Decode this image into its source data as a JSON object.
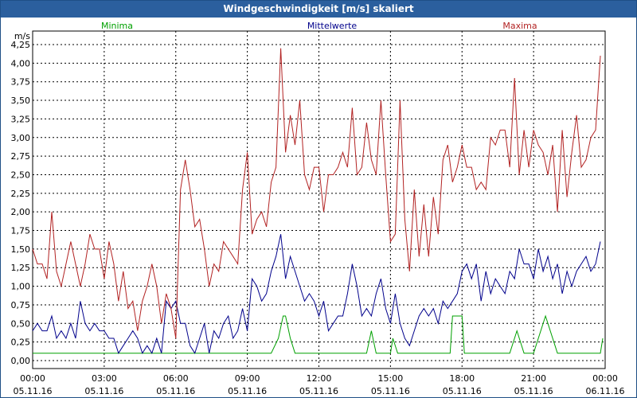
{
  "chart_title": "Windgeschwindigkeit [m/s] skaliert",
  "chart_data": {
    "type": "line",
    "title": "Windgeschwindigkeit [m/s] skaliert",
    "ylabel": "m/s",
    "ylim": [
      0,
      4.25
    ],
    "xlim": [
      0,
      24
    ],
    "grid": true,
    "legend_position": "top",
    "y_ticks": [
      "0,00",
      "0,25",
      "0,50",
      "0,75",
      "1,00",
      "1,25",
      "1,50",
      "1,75",
      "2,00",
      "2,25",
      "2,50",
      "2,75",
      "3,00",
      "3,25",
      "3,50",
      "3,75",
      "4,00",
      "4,25"
    ],
    "x_ticks": [
      {
        "time": "00:00",
        "date": "05.11.16",
        "hour": 0
      },
      {
        "time": "03:00",
        "date": "05.11.16",
        "hour": 3
      },
      {
        "time": "06:00",
        "date": "05.11.16",
        "hour": 6
      },
      {
        "time": "09:00",
        "date": "05.11.16",
        "hour": 9
      },
      {
        "time": "12:00",
        "date": "05.11.16",
        "hour": 12
      },
      {
        "time": "15:00",
        "date": "05.11.16",
        "hour": 15
      },
      {
        "time": "18:00",
        "date": "05.11.16",
        "hour": 18
      },
      {
        "time": "21:00",
        "date": "05.11.16",
        "hour": 21
      },
      {
        "time": "00:00",
        "date": "06.11.16",
        "hour": 24
      }
    ],
    "series": [
      {
        "name": "Minima",
        "color": "#00a000",
        "x": [
          0,
          10.0,
          10.3,
          10.5,
          10.6,
          10.8,
          11.0,
          14.0,
          14.2,
          14.4,
          15.0,
          15.1,
          15.3,
          15.5,
          17.5,
          17.6,
          18.0,
          18.1,
          20.0,
          20.3,
          20.6,
          21.0,
          21.5,
          22.0,
          23.8,
          23.9
        ],
        "values": [
          0.1,
          0.1,
          0.3,
          0.6,
          0.6,
          0.3,
          0.1,
          0.1,
          0.4,
          0.1,
          0.1,
          0.3,
          0.1,
          0.1,
          0.1,
          0.6,
          0.6,
          0.1,
          0.1,
          0.4,
          0.1,
          0.1,
          0.6,
          0.1,
          0.1,
          0.3
        ]
      },
      {
        "name": "Mittelwerte",
        "color": "#00008b",
        "x": [
          0,
          0.2,
          0.4,
          0.6,
          0.8,
          1.0,
          1.2,
          1.4,
          1.6,
          1.8,
          2.0,
          2.2,
          2.4,
          2.6,
          2.8,
          3.0,
          3.2,
          3.4,
          3.6,
          3.8,
          4.0,
          4.2,
          4.4,
          4.6,
          4.8,
          5.0,
          5.2,
          5.4,
          5.6,
          5.8,
          6.0,
          6.2,
          6.4,
          6.6,
          6.8,
          7.0,
          7.2,
          7.4,
          7.6,
          7.8,
          8.0,
          8.2,
          8.4,
          8.6,
          8.8,
          9.0,
          9.2,
          9.4,
          9.6,
          9.8,
          10.0,
          10.2,
          10.4,
          10.6,
          10.8,
          11.0,
          11.2,
          11.4,
          11.6,
          11.8,
          12.0,
          12.2,
          12.4,
          12.6,
          12.8,
          13.0,
          13.2,
          13.4,
          13.6,
          13.8,
          14.0,
          14.2,
          14.4,
          14.6,
          14.8,
          15.0,
          15.2,
          15.4,
          15.6,
          15.8,
          16.0,
          16.2,
          16.4,
          16.6,
          16.8,
          17.0,
          17.2,
          17.4,
          17.6,
          17.8,
          18.0,
          18.2,
          18.4,
          18.6,
          18.8,
          19.0,
          19.2,
          19.4,
          19.6,
          19.8,
          20.0,
          20.2,
          20.4,
          20.6,
          20.8,
          21.0,
          21.2,
          21.4,
          21.6,
          21.8,
          22.0,
          22.2,
          22.4,
          22.6,
          22.8,
          23.0,
          23.2,
          23.4,
          23.6,
          23.8
        ],
        "values": [
          0.4,
          0.5,
          0.4,
          0.4,
          0.6,
          0.3,
          0.4,
          0.3,
          0.5,
          0.3,
          0.8,
          0.5,
          0.4,
          0.5,
          0.4,
          0.4,
          0.3,
          0.3,
          0.1,
          0.2,
          0.3,
          0.4,
          0.3,
          0.1,
          0.2,
          0.1,
          0.3,
          0.1,
          0.8,
          0.7,
          0.8,
          0.5,
          0.5,
          0.2,
          0.1,
          0.3,
          0.5,
          0.1,
          0.4,
          0.3,
          0.5,
          0.6,
          0.3,
          0.4,
          0.7,
          0.4,
          1.1,
          1.0,
          0.8,
          0.9,
          1.2,
          1.4,
          1.7,
          1.1,
          1.4,
          1.2,
          1.0,
          0.8,
          0.9,
          0.8,
          0.6,
          0.8,
          0.4,
          0.5,
          0.6,
          0.6,
          0.9,
          1.3,
          1.0,
          0.6,
          0.7,
          0.6,
          0.9,
          1.1,
          0.7,
          0.5,
          0.9,
          0.5,
          0.3,
          0.2,
          0.4,
          0.6,
          0.7,
          0.6,
          0.7,
          0.5,
          0.8,
          0.7,
          0.8,
          0.9,
          1.2,
          1.3,
          1.1,
          1.3,
          0.8,
          1.2,
          0.9,
          1.1,
          1.0,
          0.9,
          1.2,
          1.1,
          1.5,
          1.3,
          1.3,
          1.1,
          1.5,
          1.2,
          1.4,
          1.1,
          1.3,
          0.9,
          1.2,
          1.0,
          1.2,
          1.3,
          1.4,
          1.2,
          1.3,
          1.6
        ]
      },
      {
        "name": "Maxima",
        "color": "#b22222",
        "x": [
          0,
          0.2,
          0.4,
          0.6,
          0.8,
          1.0,
          1.2,
          1.4,
          1.6,
          1.8,
          2.0,
          2.2,
          2.4,
          2.6,
          2.8,
          3.0,
          3.2,
          3.4,
          3.6,
          3.8,
          4.0,
          4.2,
          4.4,
          4.6,
          4.8,
          5.0,
          5.2,
          5.4,
          5.6,
          5.8,
          6.0,
          6.2,
          6.4,
          6.6,
          6.8,
          7.0,
          7.2,
          7.4,
          7.6,
          7.8,
          8.0,
          8.2,
          8.4,
          8.6,
          8.8,
          9.0,
          9.2,
          9.4,
          9.6,
          9.8,
          10.0,
          10.2,
          10.4,
          10.6,
          10.8,
          11.0,
          11.2,
          11.4,
          11.6,
          11.8,
          12.0,
          12.2,
          12.4,
          12.6,
          12.8,
          13.0,
          13.2,
          13.4,
          13.6,
          13.8,
          14.0,
          14.2,
          14.4,
          14.6,
          14.8,
          15.0,
          15.2,
          15.4,
          15.6,
          15.8,
          16.0,
          16.2,
          16.4,
          16.6,
          16.8,
          17.0,
          17.2,
          17.4,
          17.6,
          17.8,
          18.0,
          18.2,
          18.4,
          18.6,
          18.8,
          19.0,
          19.2,
          19.4,
          19.6,
          19.8,
          20.0,
          20.2,
          20.4,
          20.6,
          20.8,
          21.0,
          21.2,
          21.4,
          21.6,
          21.8,
          22.0,
          22.2,
          22.4,
          22.6,
          22.8,
          23.0,
          23.2,
          23.4,
          23.6,
          23.8
        ],
        "values": [
          1.5,
          1.3,
          1.3,
          1.1,
          2.0,
          1.2,
          1.0,
          1.3,
          1.6,
          1.3,
          1.0,
          1.3,
          1.7,
          1.5,
          1.5,
          1.1,
          1.6,
          1.3,
          0.8,
          1.2,
          0.7,
          0.8,
          0.4,
          0.8,
          1.0,
          1.3,
          1.0,
          0.5,
          0.9,
          0.7,
          0.3,
          2.3,
          2.7,
          2.3,
          1.8,
          1.9,
          1.5,
          1.0,
          1.3,
          1.2,
          1.6,
          1.5,
          1.4,
          1.3,
          2.3,
          2.8,
          1.7,
          1.9,
          2.0,
          1.8,
          2.4,
          2.6,
          4.2,
          2.8,
          3.3,
          2.9,
          3.5,
          2.5,
          2.3,
          2.6,
          2.6,
          2.0,
          2.5,
          2.5,
          2.6,
          2.8,
          2.6,
          3.4,
          2.5,
          2.6,
          3.2,
          2.7,
          2.5,
          3.5,
          2.5,
          1.6,
          1.7,
          3.5,
          1.9,
          1.2,
          2.3,
          1.4,
          2.1,
          1.4,
          2.2,
          1.7,
          2.7,
          2.9,
          2.4,
          2.6,
          2.9,
          2.6,
          2.6,
          2.3,
          2.4,
          2.3,
          3.0,
          2.9,
          3.1,
          3.1,
          2.6,
          3.8,
          2.5,
          3.1,
          2.6,
          3.1,
          2.9,
          2.8,
          2.5,
          2.9,
          2.0,
          3.1,
          2.2,
          2.8,
          3.3,
          2.6,
          2.7,
          3.0,
          3.1,
          4.1
        ]
      }
    ]
  }
}
